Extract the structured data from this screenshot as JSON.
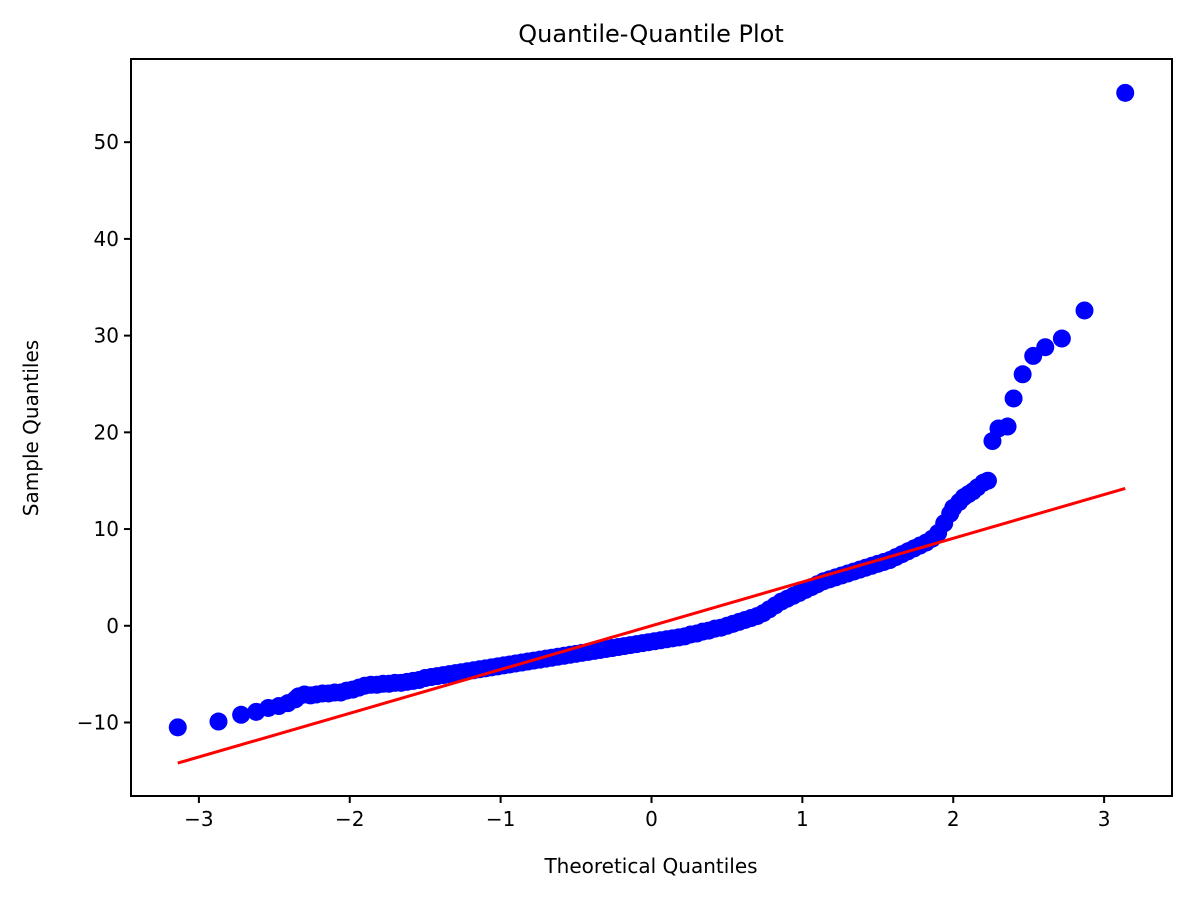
{
  "chart_data": {
    "type": "scatter",
    "title": "Quantile-Quantile Plot",
    "xlabel": "Theoretical Quantiles",
    "ylabel": "Sample Quantiles",
    "xlim": [
      -3.45,
      3.45
    ],
    "ylim": [
      -17.6,
      58.6
    ],
    "xticks": [
      -3,
      -2,
      -1,
      0,
      1,
      2,
      3
    ],
    "xtick_labels": [
      "−3",
      "−2",
      "−1",
      "0",
      "1",
      "2",
      "3"
    ],
    "yticks": [
      -10,
      0,
      10,
      20,
      30,
      40,
      50
    ],
    "ytick_labels": [
      "−10",
      "0",
      "10",
      "20",
      "30",
      "40",
      "50"
    ],
    "grid": false,
    "colors": {
      "points": "#0000ff",
      "reference_line": "#ff0000",
      "frame": "#000000"
    },
    "series": [
      {
        "kind": "points",
        "points": [
          [
            -3.14,
            -10.5
          ],
          [
            -2.87,
            -9.9
          ],
          [
            -2.72,
            -9.2
          ],
          [
            -2.62,
            -8.9
          ],
          [
            -2.54,
            -8.5
          ],
          [
            -2.47,
            -8.3
          ],
          [
            -2.41,
            -8.0
          ],
          [
            -2.36,
            -7.6
          ],
          [
            -2.34,
            -7.3
          ],
          [
            -2.3,
            -7.1
          ],
          [
            -2.26,
            -7.2
          ],
          [
            -2.22,
            -7.1
          ],
          [
            -2.18,
            -7.0
          ],
          [
            -2.14,
            -7.0
          ],
          [
            -2.1,
            -6.9
          ],
          [
            -2.06,
            -6.9
          ],
          [
            -2.02,
            -6.7
          ],
          [
            -1.98,
            -6.6
          ],
          [
            -1.94,
            -6.4
          ],
          [
            -1.9,
            -6.2
          ],
          [
            -1.86,
            -6.1
          ],
          [
            -1.82,
            -6.1
          ],
          [
            -1.78,
            -6.0
          ],
          [
            -1.74,
            -6.0
          ],
          [
            -1.7,
            -5.9
          ],
          [
            -1.66,
            -5.9
          ],
          [
            -1.62,
            -5.8
          ],
          [
            -1.58,
            -5.7
          ],
          [
            -1.54,
            -5.6
          ],
          [
            -1.5,
            -5.4
          ],
          [
            -1.46,
            -5.3
          ],
          [
            -1.42,
            -5.2
          ],
          [
            -1.38,
            -5.1
          ],
          [
            -1.34,
            -5.0
          ],
          [
            -1.3,
            -4.9
          ],
          [
            -1.26,
            -4.8
          ],
          [
            -1.22,
            -4.7
          ],
          [
            -1.18,
            -4.6
          ],
          [
            -1.14,
            -4.5
          ],
          [
            -1.1,
            -4.4
          ],
          [
            -1.06,
            -4.3
          ],
          [
            -1.02,
            -4.2
          ],
          [
            -0.98,
            -4.1
          ],
          [
            -0.94,
            -4.0
          ],
          [
            -0.9,
            -3.9
          ],
          [
            -0.86,
            -3.8
          ],
          [
            -0.82,
            -3.7
          ],
          [
            -0.78,
            -3.6
          ],
          [
            -0.74,
            -3.5
          ],
          [
            -0.7,
            -3.4
          ],
          [
            -0.66,
            -3.3
          ],
          [
            -0.62,
            -3.2
          ],
          [
            -0.58,
            -3.1
          ],
          [
            -0.54,
            -3.0
          ],
          [
            -0.5,
            -2.9
          ],
          [
            -0.46,
            -2.8
          ],
          [
            -0.42,
            -2.7
          ],
          [
            -0.38,
            -2.6
          ],
          [
            -0.34,
            -2.5
          ],
          [
            -0.3,
            -2.4
          ],
          [
            -0.26,
            -2.3
          ],
          [
            -0.22,
            -2.2
          ],
          [
            -0.18,
            -2.1
          ],
          [
            -0.14,
            -2.0
          ],
          [
            -0.1,
            -1.9
          ],
          [
            -0.06,
            -1.8
          ],
          [
            -0.02,
            -1.7
          ],
          [
            0.02,
            -1.6
          ],
          [
            0.06,
            -1.5
          ],
          [
            0.1,
            -1.4
          ],
          [
            0.14,
            -1.3
          ],
          [
            0.18,
            -1.2
          ],
          [
            0.22,
            -1.1
          ],
          [
            0.26,
            -0.9
          ],
          [
            0.3,
            -0.8
          ],
          [
            0.34,
            -0.6
          ],
          [
            0.38,
            -0.5
          ],
          [
            0.42,
            -0.3
          ],
          [
            0.46,
            -0.2
          ],
          [
            0.5,
            0.0
          ],
          [
            0.54,
            0.2
          ],
          [
            0.58,
            0.4
          ],
          [
            0.62,
            0.6
          ],
          [
            0.66,
            0.8
          ],
          [
            0.7,
            1.0
          ],
          [
            0.74,
            1.3
          ],
          [
            0.78,
            1.7
          ],
          [
            0.82,
            2.1
          ],
          [
            0.86,
            2.5
          ],
          [
            0.9,
            2.8
          ],
          [
            0.94,
            3.1
          ],
          [
            0.98,
            3.4
          ],
          [
            1.02,
            3.7
          ],
          [
            1.06,
            4.0
          ],
          [
            1.1,
            4.3
          ],
          [
            1.14,
            4.6
          ],
          [
            1.18,
            4.8
          ],
          [
            1.22,
            5.0
          ],
          [
            1.26,
            5.2
          ],
          [
            1.3,
            5.4
          ],
          [
            1.34,
            5.6
          ],
          [
            1.38,
            5.8
          ],
          [
            1.42,
            6.0
          ],
          [
            1.46,
            6.2
          ],
          [
            1.5,
            6.4
          ],
          [
            1.54,
            6.6
          ],
          [
            1.58,
            6.8
          ],
          [
            1.62,
            7.1
          ],
          [
            1.66,
            7.4
          ],
          [
            1.7,
            7.7
          ],
          [
            1.74,
            8.0
          ],
          [
            1.78,
            8.3
          ],
          [
            1.82,
            8.6
          ],
          [
            1.86,
            9.0
          ],
          [
            1.9,
            9.6
          ],
          [
            1.94,
            10.6
          ],
          [
            1.98,
            11.6
          ],
          [
            2.0,
            12.2
          ],
          [
            2.04,
            12.8
          ],
          [
            2.07,
            13.3
          ],
          [
            2.1,
            13.6
          ],
          [
            2.13,
            13.9
          ],
          [
            2.16,
            14.3
          ],
          [
            2.2,
            14.8
          ],
          [
            2.23,
            15.0
          ],
          [
            2.26,
            19.1
          ],
          [
            2.3,
            20.4
          ],
          [
            2.36,
            20.6
          ],
          [
            2.4,
            23.5
          ],
          [
            2.46,
            26.0
          ],
          [
            2.53,
            27.9
          ],
          [
            2.61,
            28.8
          ],
          [
            2.72,
            29.7
          ],
          [
            2.87,
            32.6
          ],
          [
            3.14,
            55.1
          ]
        ]
      },
      {
        "kind": "reference-line",
        "points": [
          [
            -3.14,
            -14.2
          ],
          [
            3.14,
            14.2
          ]
        ]
      }
    ]
  }
}
